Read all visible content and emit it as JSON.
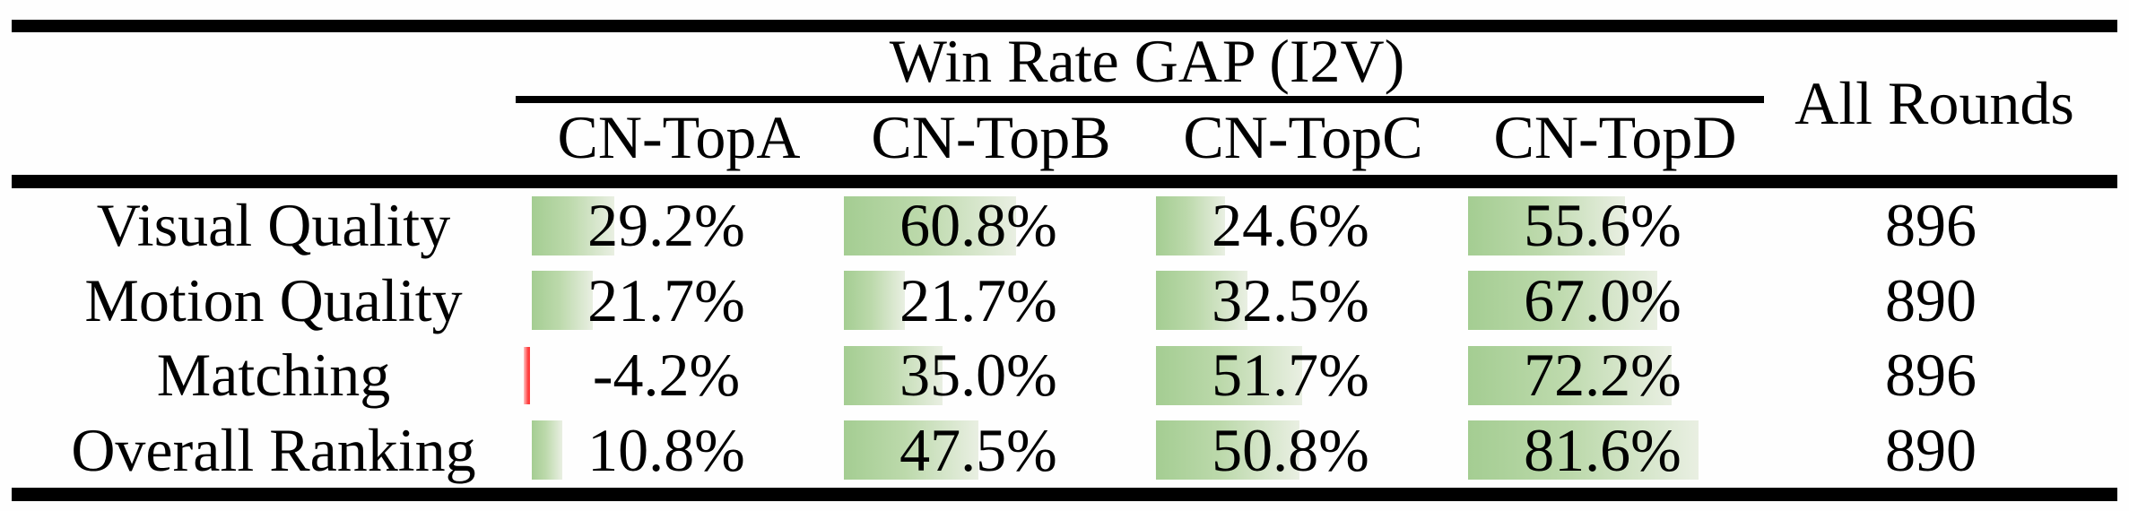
{
  "table": {
    "group_header": "Win Rate GAP (I2V)",
    "all_rounds_header": "All Rounds",
    "columns": [
      "CN-TopA",
      "CN-TopB",
      "CN-TopC",
      "CN-TopD"
    ],
    "rows": [
      {
        "label": "Visual Quality",
        "cells": [
          {
            "text": "29.2%",
            "value": 29.2
          },
          {
            "text": "60.8%",
            "value": 60.8
          },
          {
            "text": "24.6%",
            "value": 24.6
          },
          {
            "text": "55.6%",
            "value": 55.6
          }
        ],
        "all_rounds": "896"
      },
      {
        "label": "Motion Quality",
        "cells": [
          {
            "text": "21.7%",
            "value": 21.7
          },
          {
            "text": "21.7%",
            "value": 21.7
          },
          {
            "text": "32.5%",
            "value": 32.5
          },
          {
            "text": "67.0%",
            "value": 67.0
          }
        ],
        "all_rounds": "890"
      },
      {
        "label": "Matching",
        "cells": [
          {
            "text": "-4.2%",
            "value": -4.2
          },
          {
            "text": "35.0%",
            "value": 35.0
          },
          {
            "text": "51.7%",
            "value": 51.7
          },
          {
            "text": "72.2%",
            "value": 72.2
          }
        ],
        "all_rounds": "896"
      },
      {
        "label": "Overall Ranking",
        "cells": [
          {
            "text": "10.8%",
            "value": 10.8
          },
          {
            "text": "47.5%",
            "value": 47.5
          },
          {
            "text": "50.8%",
            "value": 50.8
          },
          {
            "text": "81.6%",
            "value": 81.6
          }
        ],
        "all_rounds": "890"
      }
    ],
    "colors": {
      "positive_bar_start": "#a4cd92",
      "positive_bar_mid": "#bcd9ab",
      "positive_bar_end": "#e9efe2",
      "negative_bar_light": "#ffc4c4",
      "negative_bar": "#ff3d3d",
      "rule": "#000000",
      "text": "#000000",
      "background": "#fefefe"
    }
  },
  "chart_data": {
    "type": "table",
    "title": "Win Rate GAP (I2V)",
    "columns": [
      "CN-TopA",
      "CN-TopB",
      "CN-TopC",
      "CN-TopD",
      "All Rounds"
    ],
    "rows": [
      "Visual Quality",
      "Motion Quality",
      "Matching",
      "Overall Ranking"
    ],
    "win_rate_gap_percent": {
      "Visual Quality": [
        29.2,
        60.8,
        24.6,
        55.6
      ],
      "Motion Quality": [
        21.7,
        21.7,
        32.5,
        67.0
      ],
      "Matching": [
        -4.2,
        35.0,
        51.7,
        72.2
      ],
      "Overall Ranking": [
        10.8,
        47.5,
        50.8,
        81.6
      ]
    },
    "all_rounds": [
      896,
      890,
      896,
      890
    ],
    "bar_style": "green gradient data bars proportional to value; negative values shown as thin red bar"
  }
}
